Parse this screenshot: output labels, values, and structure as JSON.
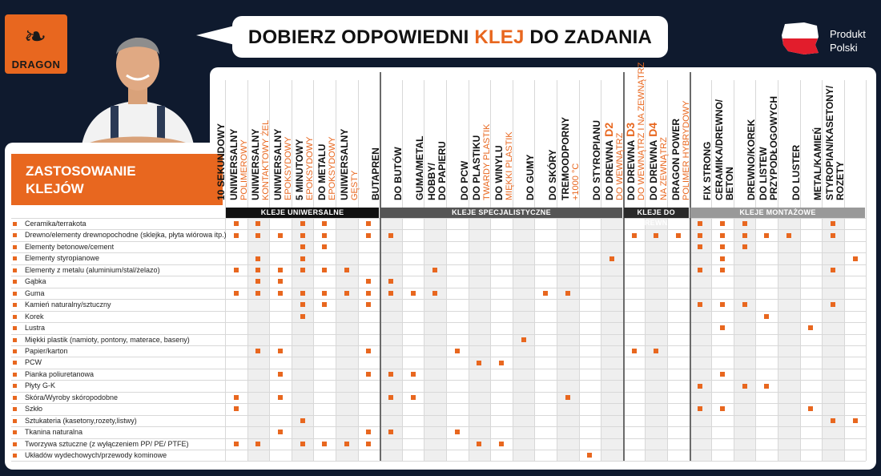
{
  "logo": {
    "text": "DRAGON"
  },
  "banner": {
    "prefix": "DOBIERZ ODPOWIEDNI ",
    "highlight": "KLEJ",
    "suffix": " DO ZADANIA"
  },
  "origin": {
    "line1": "Produkt",
    "line2": "Polski"
  },
  "table_title": {
    "line1": "ZASTOSOWANIE",
    "line2": "KLEJÓW"
  },
  "colors": {
    "accent": "#e8671f",
    "background": "#0f1a2e",
    "group_universal": "#111111",
    "group_special": "#555555",
    "group_wood": "#2a2a2a",
    "group_mount": "#999999"
  },
  "groups": [
    {
      "label": "KLEJE UNIWERSALNE"
    },
    {
      "label": "KLEJE SPECJALISTYCZNE"
    },
    {
      "label": "KLEJE DO DREWNA"
    },
    {
      "label": "KLEJE MONTAŻOWE"
    }
  ],
  "columns": [
    {
      "l1": "10 SEKUNDOWY",
      "l2": ""
    },
    {
      "l1": "UNIWERSALNY",
      "l2": "POLIMEROWY"
    },
    {
      "l1": "UNIWERSALNY",
      "l2": "KONTAKTOWY ŻEL"
    },
    {
      "l1": "UNIWERSALNY",
      "l2": "EPOKSYDOWY"
    },
    {
      "l1": "5 MINUTOWY",
      "l2": "EPOKSYDOWY"
    },
    {
      "l1": "DO METALU",
      "l2": "EPOKSYDOWY"
    },
    {
      "l1": "UNIWERSALNY",
      "l2": "GĘSTY"
    },
    {
      "l1": "BUTAPREN",
      "l2": ""
    },
    {
      "l1": "DO BUTÓW",
      "l2": ""
    },
    {
      "l1": "GUMA/METAL",
      "l2": ""
    },
    {
      "l1": "HOBBY/",
      "l2": "DO PAPIERU"
    },
    {
      "l1": "DO PCW",
      "l2": ""
    },
    {
      "l1": "DO PLASTIKU",
      "l2": "TWARDY PLASTIK"
    },
    {
      "l1": "DO WINYLU",
      "l2": "MIĘKKI PLASTIK"
    },
    {
      "l1": "DO GUMY",
      "l2": ""
    },
    {
      "l1": "DO SKÓRY",
      "l2": ""
    },
    {
      "l1": "TREMOODPORNY",
      "l2": "+1000 °C"
    },
    {
      "l1": "DO STYROPIANU",
      "l2": ""
    },
    {
      "l1": "DO DREWNA D2",
      "l2": "DO WEWNĄTRZ"
    },
    {
      "l1": "DO DREWNA D3",
      "l2": "DO WEWNĄTRZ I NA ZEWNĄTRZ"
    },
    {
      "l1": "DO DREWNA D4",
      "l2": "NA ZEWNĄTRZ"
    },
    {
      "l1": "DRAGON POWER",
      "l2": "POLIMER HYBRYDOWY"
    },
    {
      "l1": "FIX STRONG",
      "l2": ""
    },
    {
      "l1": "CERAMIKA/DREWNO/",
      "l2": "BETON"
    },
    {
      "l1": "DREWNO/KOREK",
      "l2": ""
    },
    {
      "l1": "DO LISTEW",
      "l2": "PRZYPODŁOGOWYCH"
    },
    {
      "l1": "DO LUSTER",
      "l2": ""
    },
    {
      "l1": "METAL/KAMIEŃ",
      "l2": ""
    },
    {
      "l1": "STYROPIAN/KASETONY/",
      "l2": "ROZETY"
    }
  ],
  "rows": [
    {
      "label": "Ceramika/terrakota",
      "marks": [
        0,
        1,
        3,
        4,
        6,
        21,
        22,
        23,
        27
      ]
    },
    {
      "label": "Drewno/elementy drewnopochodne (sklejka, płyta wiórowa itp.)",
      "marks": [
        0,
        1,
        2,
        3,
        4,
        6,
        7,
        18,
        19,
        20,
        21,
        22,
        23,
        24,
        25,
        27
      ]
    },
    {
      "label": "Elementy betonowe/cement",
      "marks": [
        3,
        4,
        21,
        22,
        23
      ]
    },
    {
      "label": "Elementy styropianowe",
      "marks": [
        1,
        3,
        17,
        22,
        28
      ]
    },
    {
      "label": "Elementy z metalu (aluminium/stal/żelazo)",
      "marks": [
        0,
        1,
        2,
        3,
        4,
        5,
        9,
        21,
        22,
        27
      ]
    },
    {
      "label": "Gąbka",
      "marks": [
        1,
        2,
        6,
        7
      ]
    },
    {
      "label": "Guma",
      "marks": [
        0,
        1,
        2,
        3,
        4,
        5,
        6,
        7,
        8,
        9,
        14,
        15
      ]
    },
    {
      "label": "Kamień naturalny/sztuczny",
      "marks": [
        3,
        4,
        6,
        21,
        22,
        23,
        27
      ]
    },
    {
      "label": "Korek",
      "marks": [
        3,
        24
      ]
    },
    {
      "label": "Lustra",
      "marks": [
        22,
        26
      ]
    },
    {
      "label": "Miękki plastik (namioty, pontony, materace, baseny)",
      "marks": [
        13
      ]
    },
    {
      "label": "Papier/karton",
      "marks": [
        1,
        2,
        6,
        10,
        18,
        19
      ]
    },
    {
      "label": "PCW",
      "marks": [
        11,
        12
      ]
    },
    {
      "label": "Pianka poliuretanowa",
      "marks": [
        2,
        6,
        7,
        8,
        22
      ]
    },
    {
      "label": "Płyty G-K",
      "marks": [
        21,
        23,
        24
      ]
    },
    {
      "label": "Skóra/Wyroby skóropodobne",
      "marks": [
        0,
        2,
        7,
        8,
        15
      ]
    },
    {
      "label": "Szkło",
      "marks": [
        0,
        21,
        22,
        26
      ]
    },
    {
      "label": "Sztukateria (kasetony,rozety,listwy)",
      "marks": [
        3,
        27,
        28
      ]
    },
    {
      "label": "Tkanina naturalna",
      "marks": [
        2,
        6,
        7,
        10
      ]
    },
    {
      "label": "Tworzywa sztuczne (z wyłączeniem PP/ PE/ PTFE)",
      "marks": [
        0,
        1,
        3,
        4,
        5,
        6,
        11,
        12
      ]
    },
    {
      "label": "Układów wydechowych/przewody kominowe",
      "marks": [
        16
      ]
    }
  ]
}
